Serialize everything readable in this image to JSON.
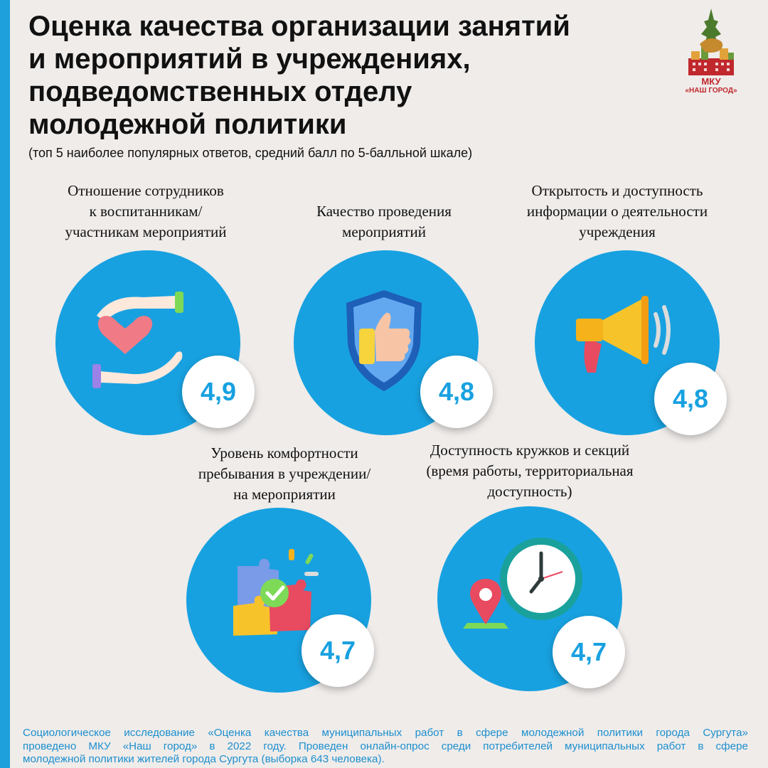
{
  "title": {
    "lines": [
      "Оценка качества организации занятий",
      "и мероприятий в учреждениях,",
      "подведомственных отделу",
      "молодежной политики"
    ],
    "subtitle": "(топ 5 наиболее популярных ответов, средний балл по 5-балльной шкале)"
  },
  "logo": {
    "line1": "МКУ",
    "line2": "«НАШ ГОРОД»"
  },
  "items": [
    {
      "label_lines": [
        "Отношение сотрудников",
        "к воспитанникам/",
        "участникам мероприятий"
      ],
      "score": "4,9",
      "score_value": 4.9,
      "icon": "heart-in-hands-icon"
    },
    {
      "label_lines": [
        "Качество проведения",
        "мероприятий"
      ],
      "score": "4,8",
      "score_value": 4.8,
      "icon": "thumbs-up-shield-icon"
    },
    {
      "label_lines": [
        "Открытость и доступность",
        "информации о деятельности",
        "учреждения"
      ],
      "score": "4,8",
      "score_value": 4.8,
      "icon": "megaphone-icon"
    },
    {
      "label_lines": [
        "Уровень комфортности",
        "пребывания в учреждении/",
        "на мероприятии"
      ],
      "score": "4,7",
      "score_value": 4.7,
      "icon": "puzzle-check-icon"
    },
    {
      "label_lines": [
        "Доступность кружков и секций",
        "(время работы, территориальная",
        "доступность)"
      ],
      "score": "4,7",
      "score_value": 4.7,
      "icon": "clock-location-icon"
    }
  ],
  "footer": {
    "lines": [
      "Социологическое исследование «Оценка качества муниципальных работ в сфере молодежной политики города Сургута»",
      "проведено МКУ «Наш город» в 2022 году. Проведен онлайн-опрос среди потребителей муниципальных работ в сфере",
      "молодежной политики жителей города Сургута (выборка 643 человека)."
    ]
  },
  "colors": {
    "accent": "#18a1e0",
    "sidebar": "#1ea0dc",
    "background": "#efecea",
    "footer_text": "#1d8fce",
    "logo_red": "#c0282d"
  }
}
